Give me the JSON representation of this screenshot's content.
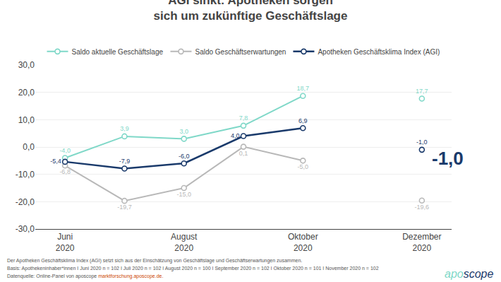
{
  "chart_data": {
    "type": "line",
    "title": "AGI sinkt: Apotheken sorgen\nsich um zukünftige Geschäftslage",
    "categories": [
      "Juni\n2020",
      null,
      "August\n2020",
      null,
      "Oktober\n2020",
      null,
      "Dezember\n2020"
    ],
    "series": [
      {
        "name": "Saldo aktuelle Geschäftslage",
        "color": "#7fd8c8",
        "values": [
          -4.0,
          3.9,
          3.0,
          7.8,
          18.7,
          null,
          17.7
        ],
        "value_labels": [
          "-4,0",
          "3,9",
          "3,0",
          "7,8",
          "18,7",
          null,
          "17,7"
        ]
      },
      {
        "name": "Saldo Geschäftserwartungen",
        "color": "#b8b8b8",
        "values": [
          -6.8,
          -19.7,
          -15.0,
          0.1,
          -5.0,
          null,
          -19.6
        ],
        "value_labels": [
          "-6,8",
          "-19,7",
          "-15,0",
          "0,1",
          "-5,0",
          null,
          "-19,6"
        ]
      },
      {
        "name": "Apotheken Geschäftsklima Index (AGI)",
        "color": "#1a3a6b",
        "values": [
          -5.4,
          -7.9,
          -6.0,
          4.0,
          6.9,
          null,
          -1.0
        ],
        "value_labels": [
          "-5,4",
          "-7,9",
          "-6,0",
          "4,0",
          "6,9",
          null,
          "-1,0"
        ]
      }
    ],
    "ylim": [
      -30,
      30
    ],
    "yticks": [
      {
        "value": -30,
        "label": "-30,0"
      },
      {
        "value": -20,
        "label": "-20,0"
      },
      {
        "value": -10,
        "label": "-10,0"
      },
      {
        "value": 0,
        "label": "0,0"
      },
      {
        "value": 10,
        "label": "10,0"
      },
      {
        "value": 20,
        "label": "20,0"
      },
      {
        "value": 30,
        "label": "30,0"
      }
    ],
    "grid": true,
    "legend": "top",
    "data_labels": true,
    "marker": "circle",
    "annotations": [
      {
        "text": "-1,0",
        "color": "#1a3a6b",
        "series": "Apotheken Geschäftsklima Index (AGI)"
      },
      {
        "text": "Der Apotheken Geschäftsklima Index (AGI) setzt sich aus der Einschätzung von Geschäftslage und Geschäftserwartungen zusammen."
      },
      {
        "text": "Basis: Apothekeninhaber*innen I Juni 2020 n = 102 I Juli 2020 n = 102 I August 2020 n = 100 I September 2020 n = 102 I Oktober 2020 n = 101 I November 2020 n = 102"
      },
      {
        "parts": [
          {
            "text": "Datenquelle: Online-Panel von "
          },
          {
            "text": "aposcope"
          },
          {
            "text": " marktforschung.aposcope.de.",
            "color": "#cc4400"
          }
        ]
      },
      {
        "parts": [
          {
            "text": "apo",
            "color": "#7fd8c8"
          },
          {
            "text": "scope",
            "color": "#1a3a6b"
          }
        ]
      }
    ]
  }
}
